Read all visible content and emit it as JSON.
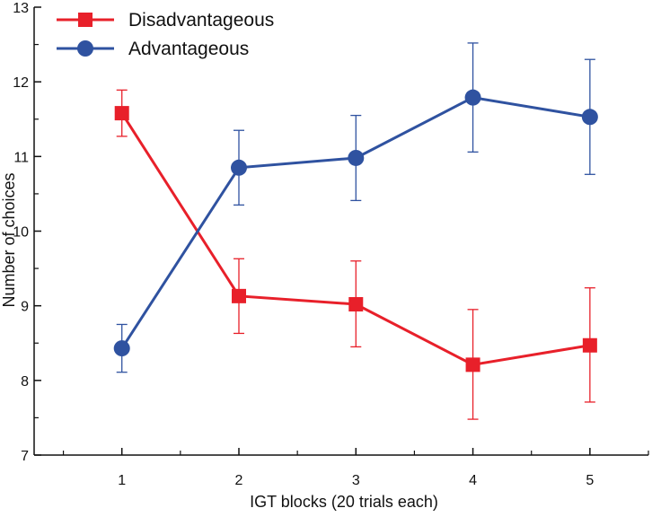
{
  "chart_data": {
    "type": "line",
    "title": "",
    "xlabel": "IGT blocks (20 trials each)",
    "ylabel": "Number of choices",
    "categories": [
      "1",
      "2",
      "3",
      "4",
      "5"
    ],
    "x": [
      1,
      2,
      3,
      4,
      5
    ],
    "xlim": [
      0.25,
      5.5
    ],
    "ylim": [
      7,
      13
    ],
    "yticks": [
      7,
      8,
      9,
      10,
      11,
      12,
      13
    ],
    "ytick_labels": [
      "7",
      "8",
      "9",
      "10",
      "11",
      "12",
      "13"
    ],
    "grid": false,
    "legend_position": "top-left",
    "series": [
      {
        "name": "Disadvantageous",
        "marker": "square",
        "color": "#e8202a",
        "values": [
          11.58,
          9.13,
          9.02,
          8.21,
          8.47
        ],
        "error_upper": [
          11.89,
          9.63,
          9.6,
          8.95,
          9.24
        ],
        "error_lower": [
          11.27,
          8.63,
          8.45,
          7.48,
          7.71
        ]
      },
      {
        "name": "Advantageous",
        "marker": "circle",
        "color": "#2f52a0",
        "values": [
          8.43,
          10.85,
          10.98,
          11.79,
          11.53
        ],
        "error_upper": [
          8.75,
          11.35,
          11.55,
          12.52,
          12.3
        ],
        "error_lower": [
          8.11,
          10.35,
          10.41,
          11.06,
          10.76
        ]
      }
    ]
  }
}
